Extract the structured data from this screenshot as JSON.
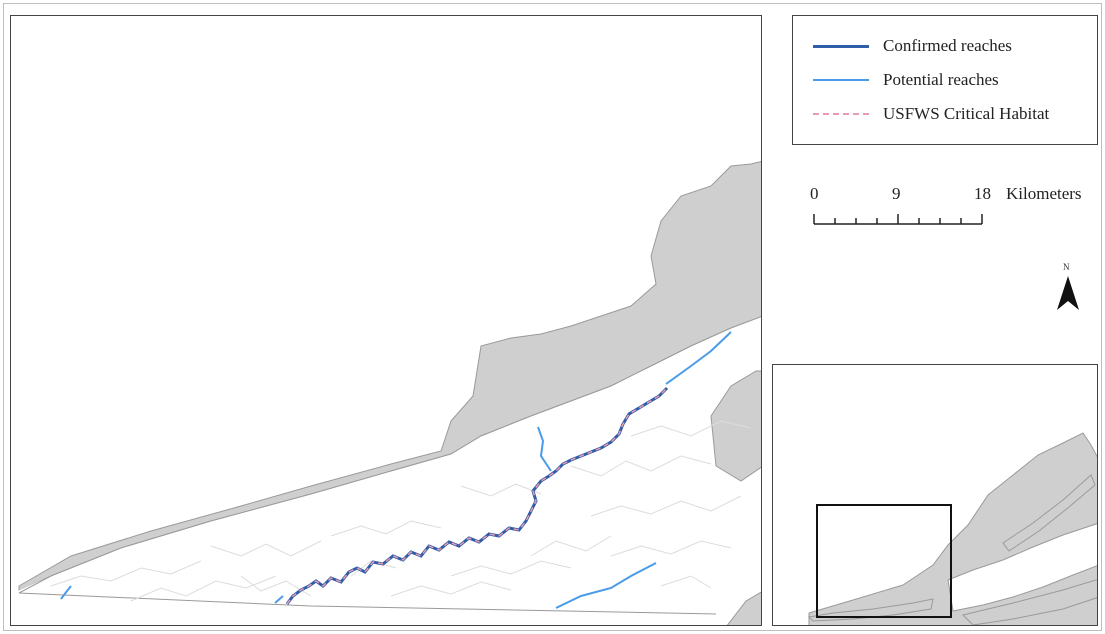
{
  "legend": {
    "items": [
      {
        "label": "Confirmed reaches",
        "symbol": "solid-line",
        "color": "#2f5da8"
      },
      {
        "label": "Potential reaches",
        "symbol": "thin-line",
        "color": "#4a9be8"
      },
      {
        "label": "USFWS Critical Habitat",
        "symbol": "dashed-line",
        "color": "#e79ab0"
      }
    ]
  },
  "scale_bar": {
    "ticks": [
      "0",
      "9",
      "18"
    ],
    "unit": "Kilometers"
  },
  "north_arrow": {
    "label": "N",
    "icon": "north-arrow-icon"
  },
  "colors": {
    "gray_region": "#cfcfcf",
    "study_area": "#ffffff",
    "streams": "#dcdcdc",
    "outline": "#444444"
  }
}
